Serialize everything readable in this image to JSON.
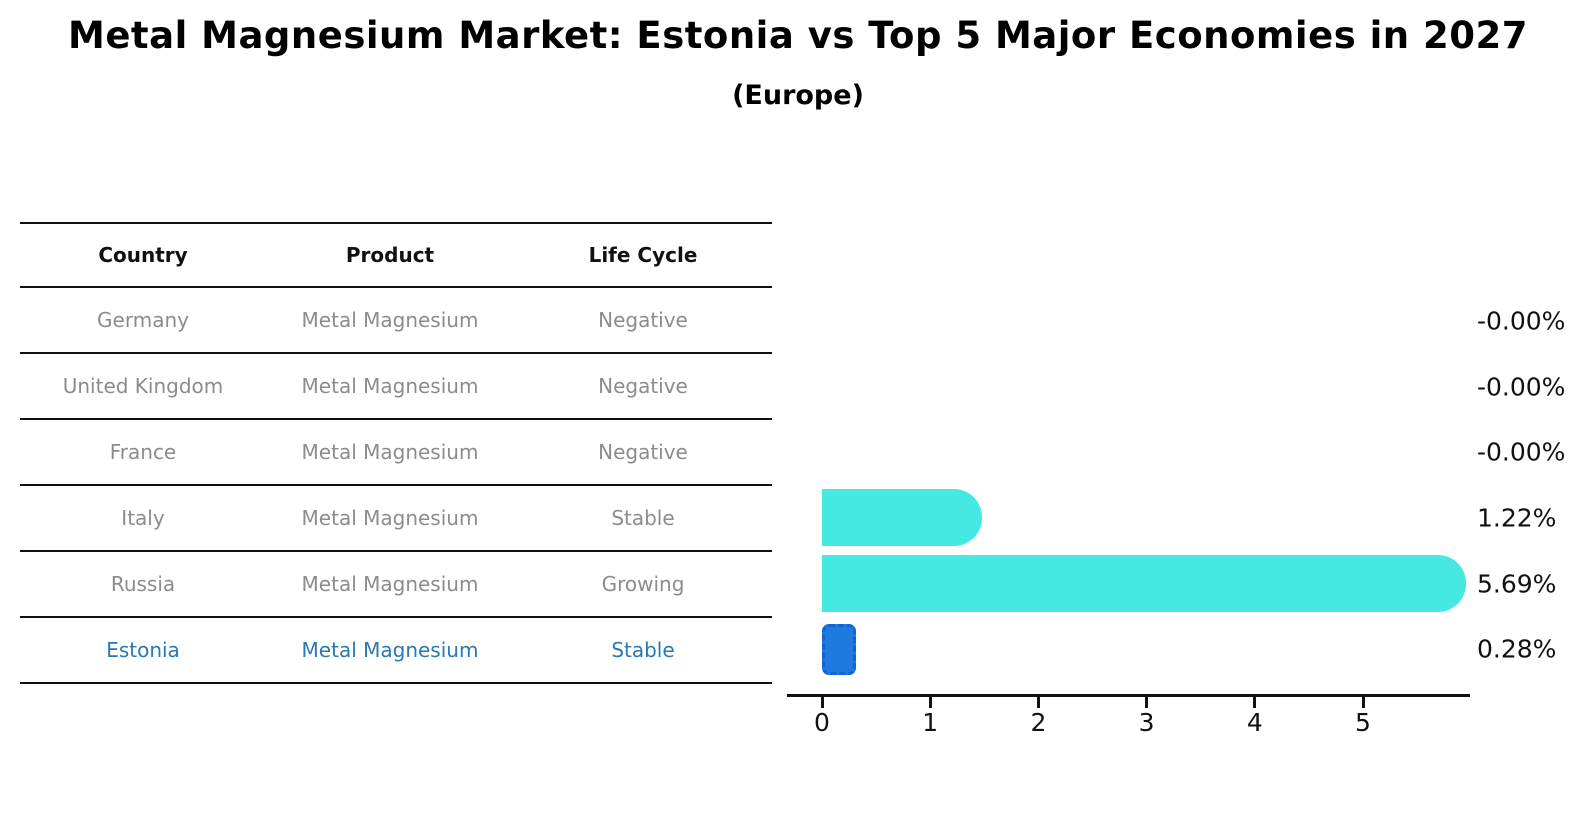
{
  "title": "Metal Magnesium Market: Estonia vs Top 5 Major Economies in 2027",
  "subtitle": "(Europe)",
  "colors": {
    "bar_default": "#45e8e2",
    "bar_highlight": "#1f7ae0",
    "bar_highlight_border": "#1563d2",
    "muted_text": "#8c8c8c",
    "highlight_text": "#2878b4",
    "axis": "#111111"
  },
  "table": {
    "headers": [
      "Country",
      "Product",
      "Life Cycle"
    ],
    "rows": [
      {
        "country": "Germany",
        "product": "Metal Magnesium",
        "life_cycle": "Negative",
        "highlight": false
      },
      {
        "country": "United Kingdom",
        "product": "Metal Magnesium",
        "life_cycle": "Negative",
        "highlight": false
      },
      {
        "country": "France",
        "product": "Metal Magnesium",
        "life_cycle": "Negative",
        "highlight": false
      },
      {
        "country": "Italy",
        "product": "Metal Magnesium",
        "life_cycle": "Stable",
        "highlight": false
      },
      {
        "country": "Russia",
        "product": "Metal Magnesium",
        "life_cycle": "Growing",
        "highlight": false
      },
      {
        "country": "Estonia",
        "product": "Metal Magnesium",
        "life_cycle": "Stable",
        "highlight": true
      }
    ]
  },
  "chart_data": {
    "type": "bar",
    "orientation": "horizontal",
    "title": "Metal Magnesium Market: Estonia vs Top 5 Major Economies in 2027 (Europe)",
    "categories": [
      "Germany",
      "United Kingdom",
      "France",
      "Italy",
      "Russia",
      "Estonia"
    ],
    "values": [
      -0.0,
      -0.0,
      -0.0,
      1.22,
      5.69,
      0.28
    ],
    "labels": [
      "-0.00%",
      "-0.00%",
      "-0.00%",
      "1.22%",
      "5.69%",
      "0.28%"
    ],
    "highlight_index": 5,
    "xticks": [
      0,
      1,
      2,
      3,
      4,
      5
    ],
    "xlim": [
      -0.32,
      6.0
    ],
    "xlabel": "",
    "ylabel": "",
    "grid": false,
    "legend": false
  }
}
